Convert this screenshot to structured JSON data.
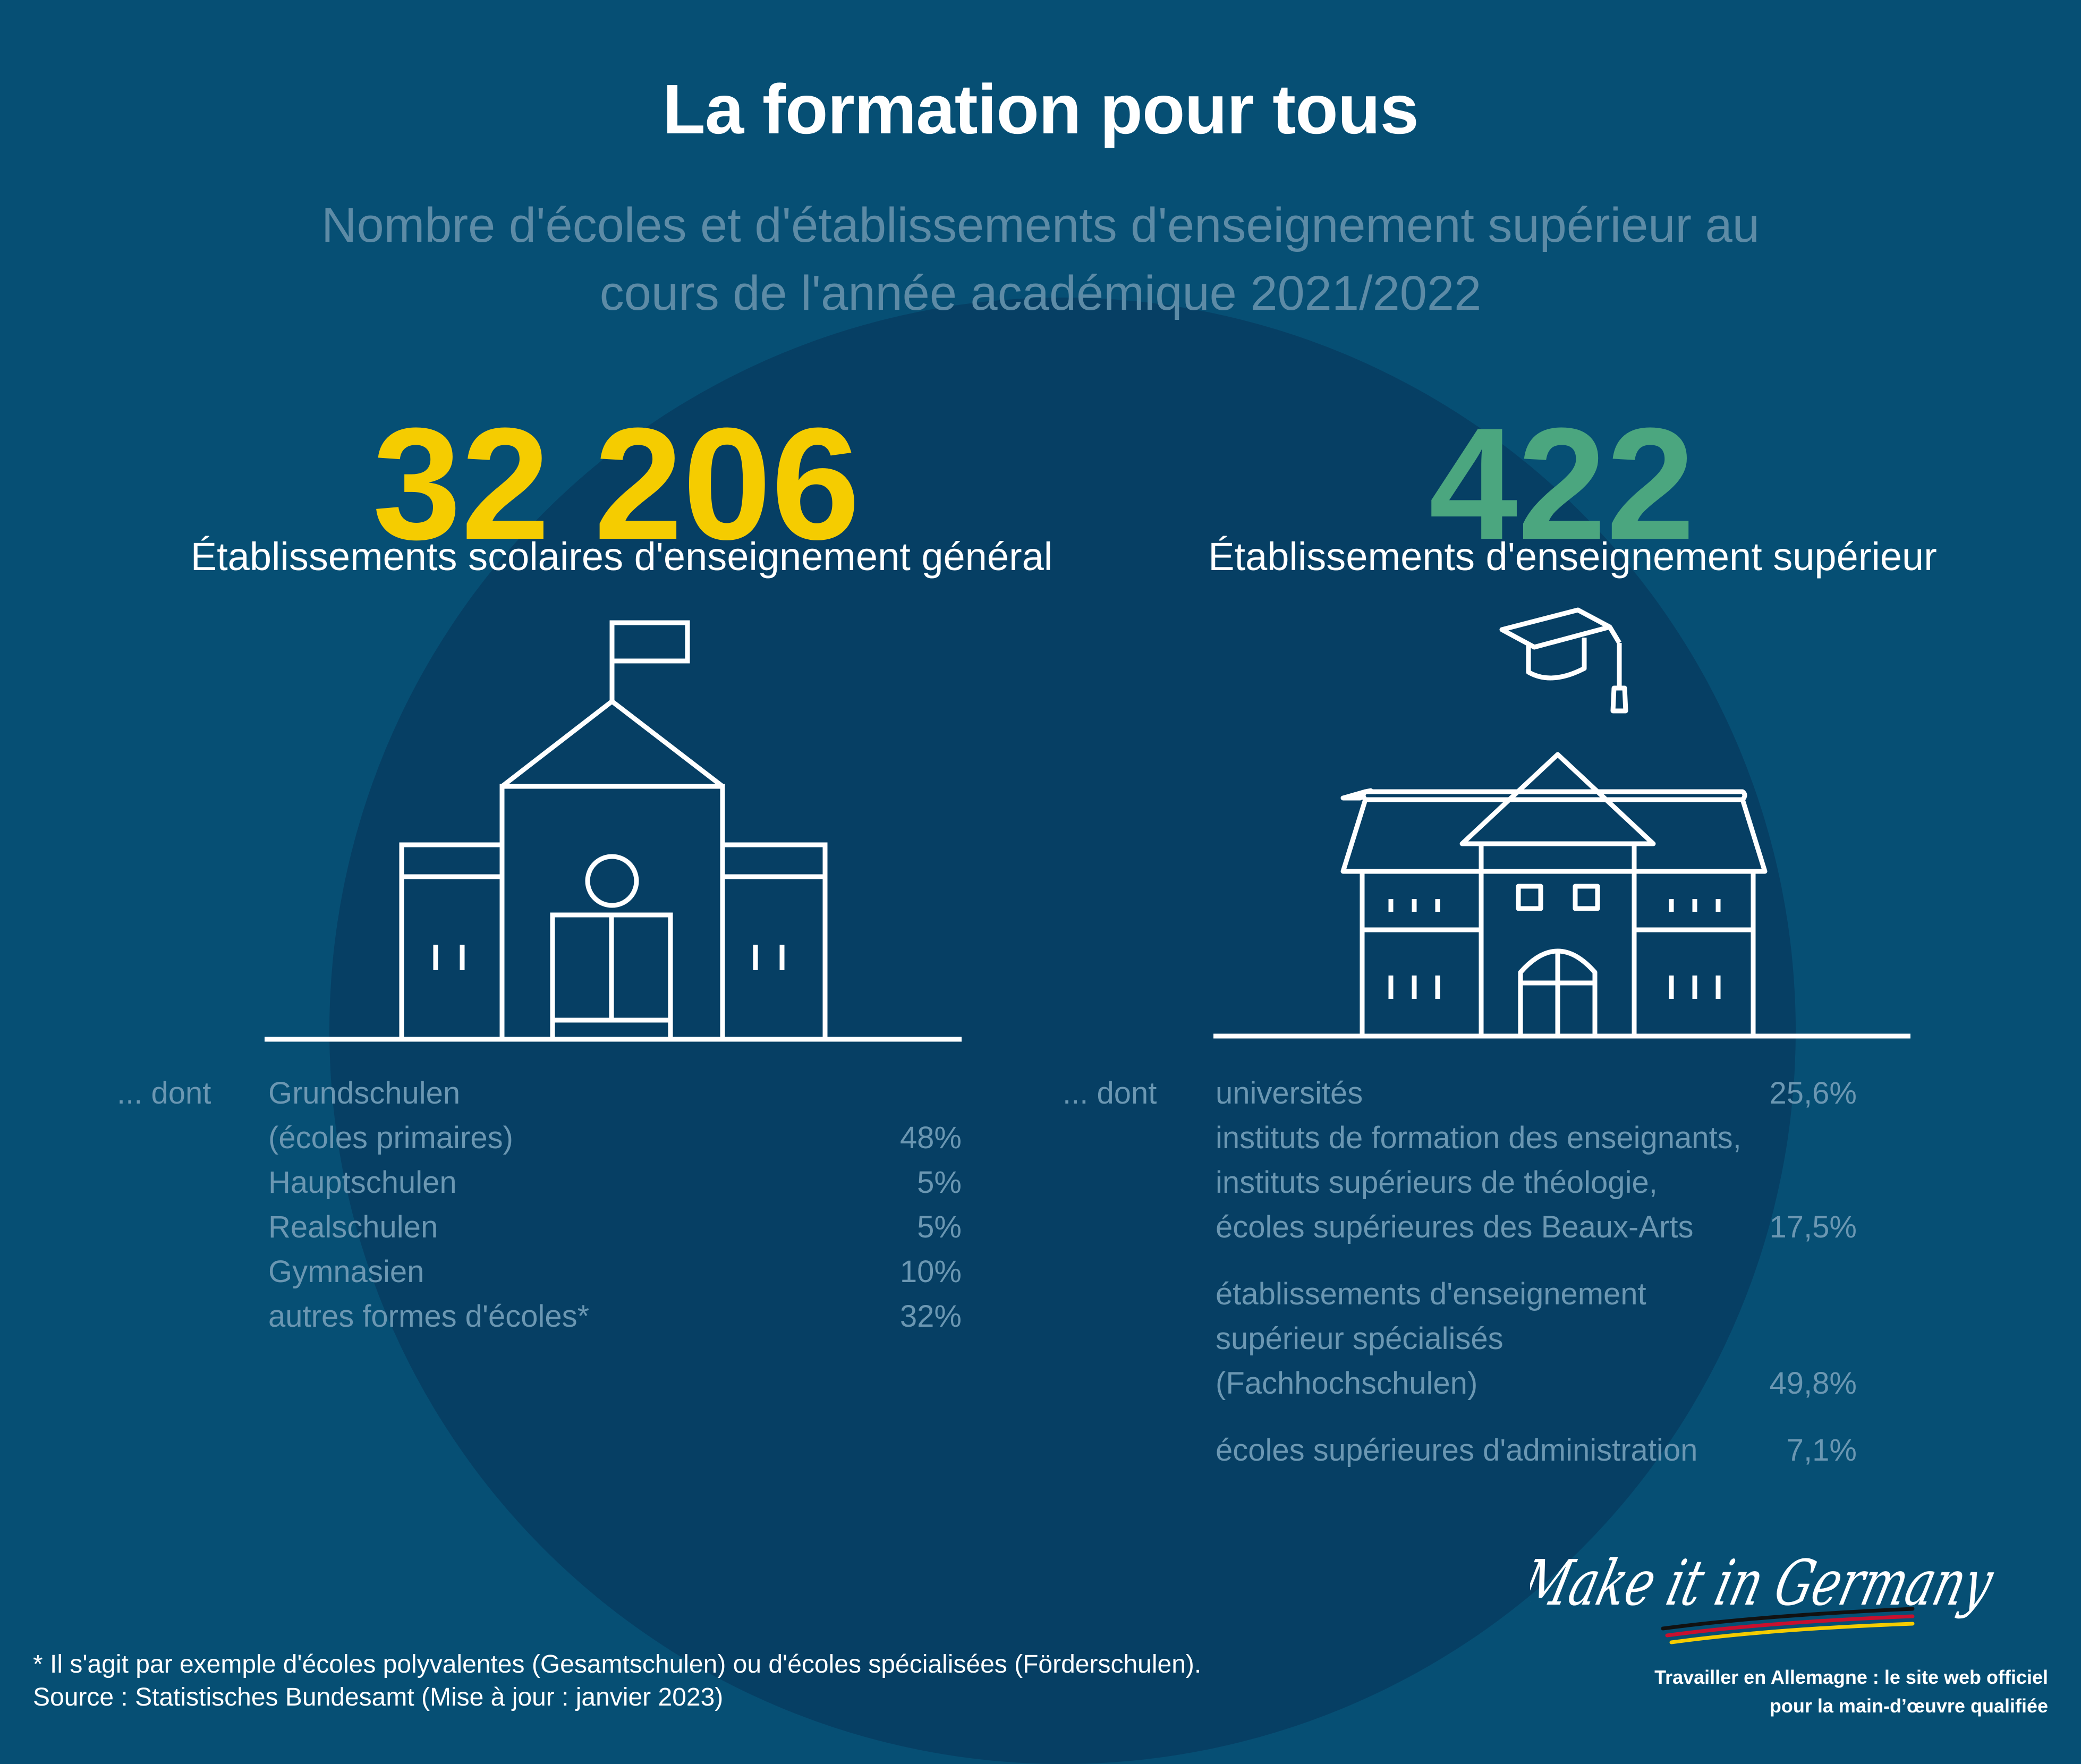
{
  "title": "La formation pour tous",
  "subtitle": {
    "line1": "Nombre d'écoles et d'établissements d'enseignement supérieur au",
    "line2": "cours de l'année académique 2021/2022"
  },
  "schools": {
    "total": "32 206",
    "category": "Établissements scolaires d'enseignement général",
    "dont": "... dont",
    "items": [
      {
        "label": "Grundschulen",
        "value": ""
      },
      {
        "label": "(écoles primaires)",
        "value": "48%"
      },
      {
        "label": "Hauptschulen",
        "value": "5%"
      },
      {
        "label": "Realschulen",
        "value": "5%"
      },
      {
        "label": "Gymnasien",
        "value": "10%"
      },
      {
        "label": "autres formes d'écoles*",
        "value": "32%"
      }
    ]
  },
  "higher": {
    "total": "422",
    "category": "Établissements d'enseignement supérieur",
    "dont": "... dont",
    "items": [
      {
        "label": "universités",
        "value": "25,6%"
      },
      {
        "label": "instituts de formation des enseignants,",
        "value": ""
      },
      {
        "label": "instituts supérieurs de théologie,",
        "value": ""
      },
      {
        "label": "écoles supérieures des Beaux-Arts",
        "value": "17,5%"
      },
      {
        "label": "établissements d'enseignement",
        "value": ""
      },
      {
        "label": "supérieur spécialisés",
        "value": ""
      },
      {
        "label": "(Fachhochschulen)",
        "value": "49,8%"
      },
      {
        "label": "écoles supérieures d'administration",
        "value": "7,1%"
      }
    ]
  },
  "footnote": {
    "line1": "* Il s'agit par exemple d'écoles polyvalentes (Gesamtschulen) ou d'écoles spécialisées (Förderschulen).",
    "line2": "Source : Statistisches Bundesamt (Mise à jour : janvier 2023)"
  },
  "brand": {
    "logo": "Make it in Germany",
    "tagline1": "Travailler en Allemagne : le site web officiel",
    "tagline2": "pour la main-d’œuvre qualifiée"
  },
  "colors": {
    "background": "#064f74",
    "circle": "#063f64",
    "accent_yellow": "#f5cc00",
    "accent_green": "#4ba67f",
    "muted_text": "#6b97b2"
  }
}
